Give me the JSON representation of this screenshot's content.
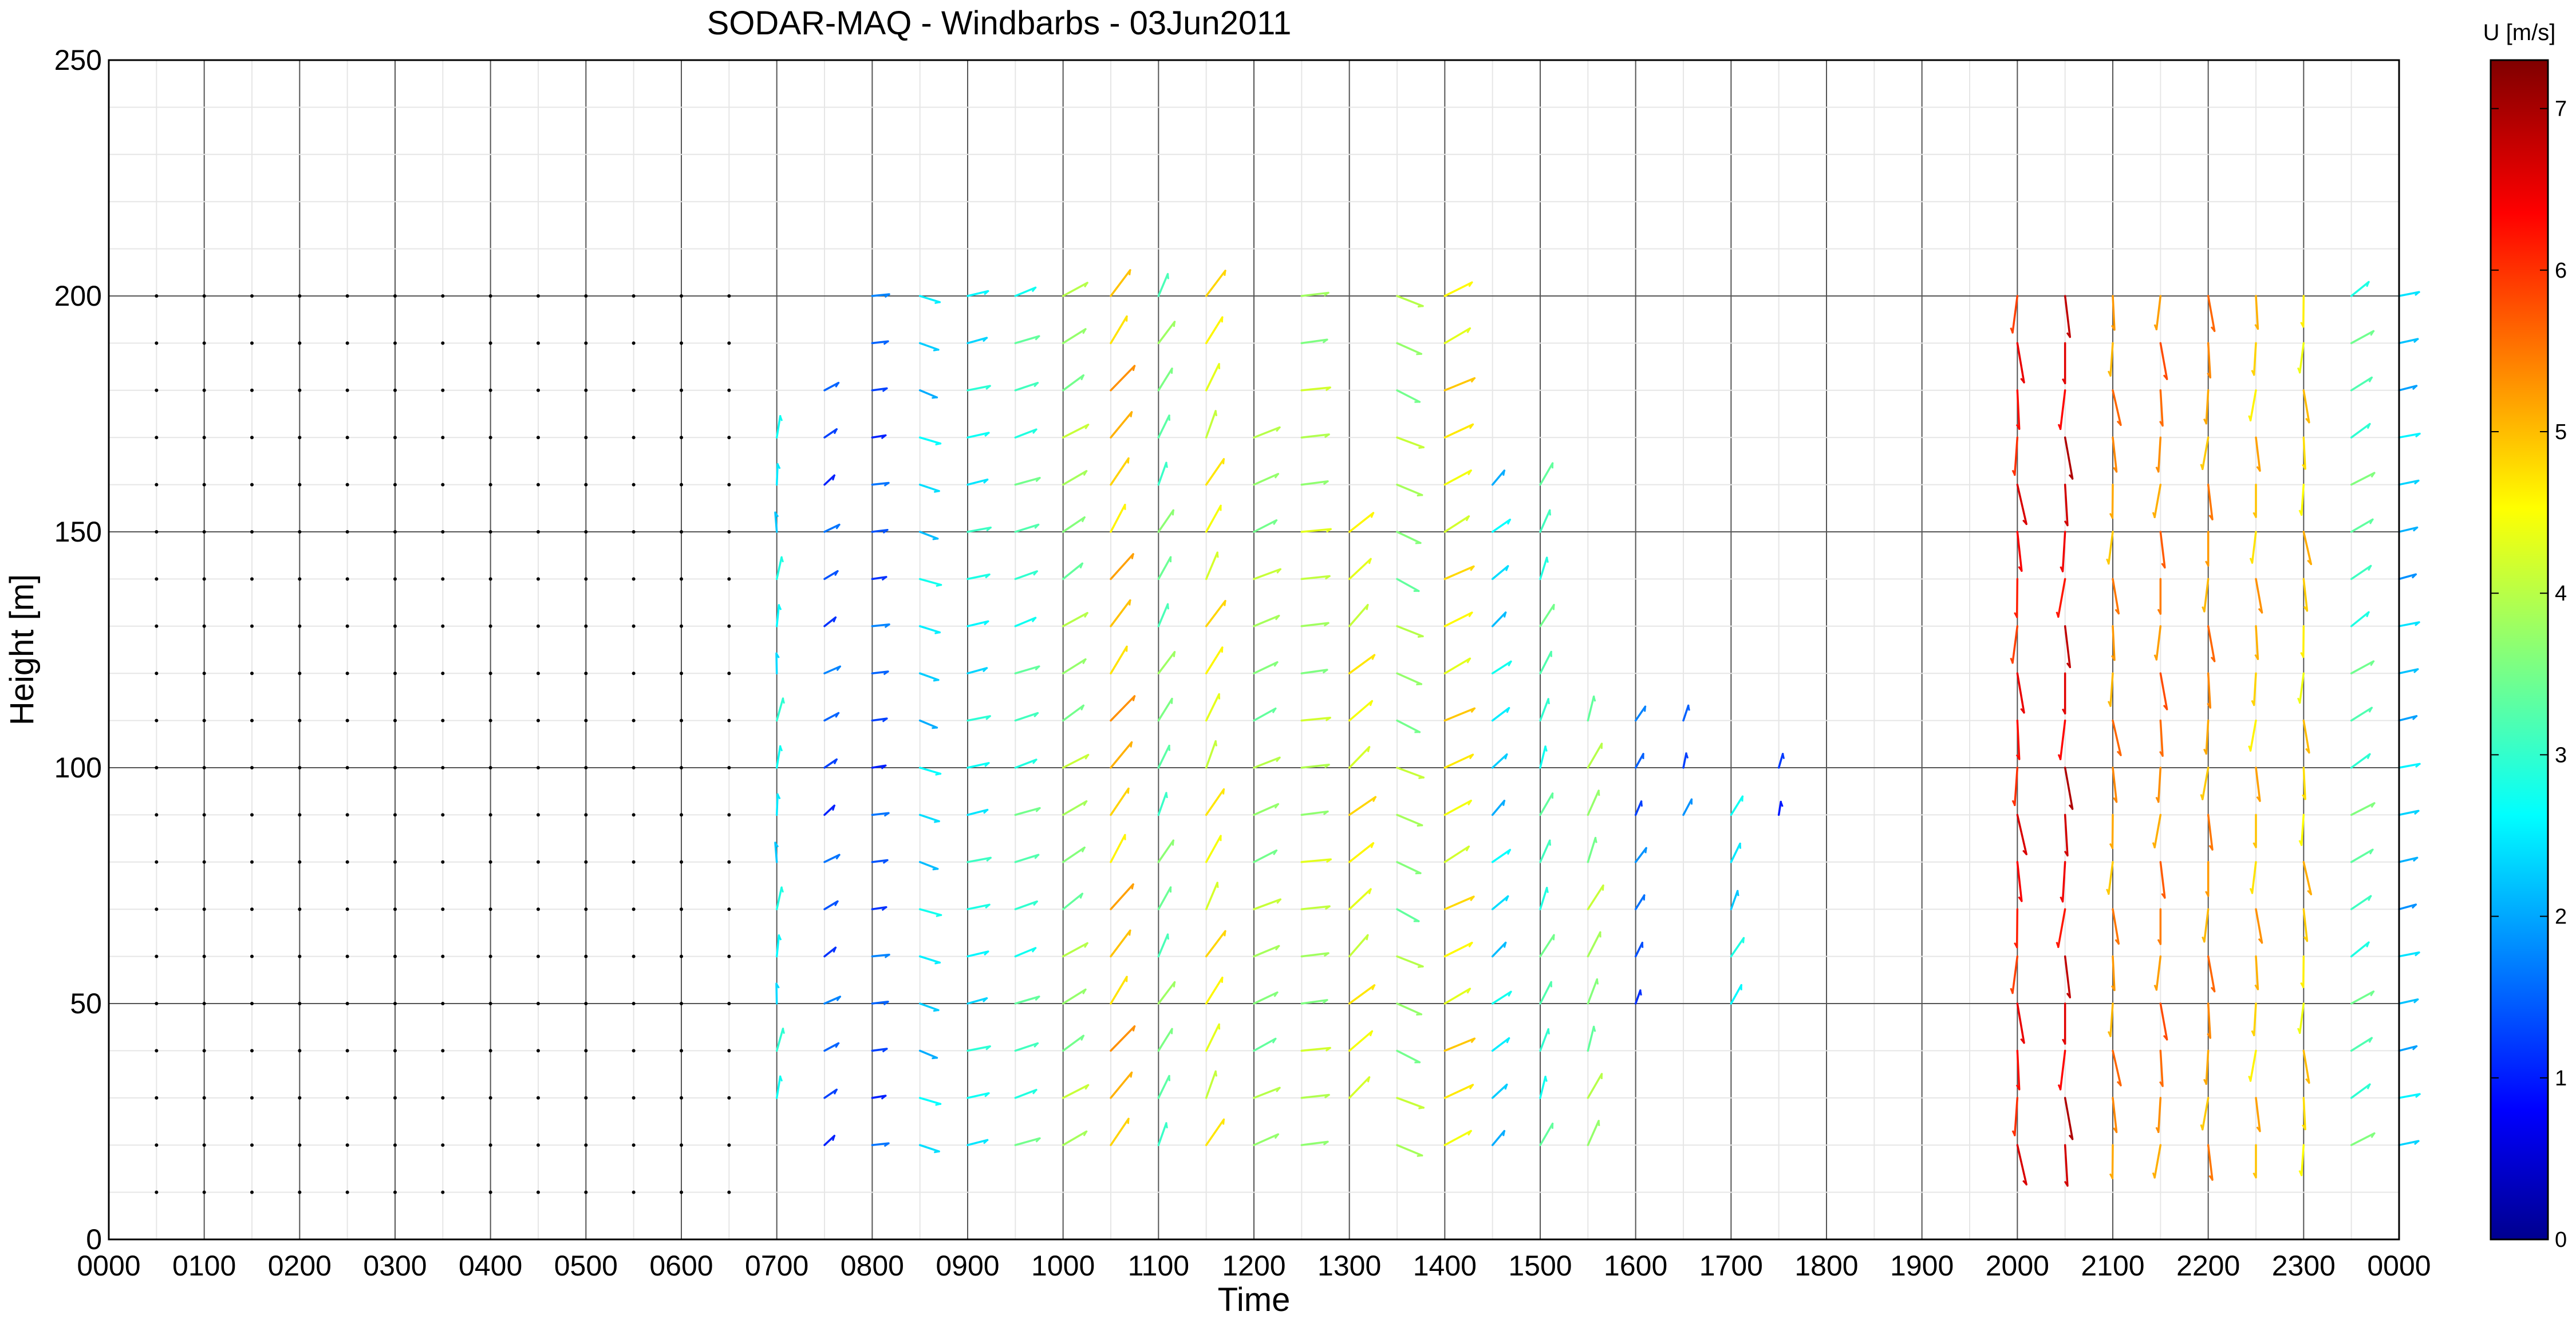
{
  "chart_data": {
    "type": "windbarbs",
    "title": "SODAR-MAQ - Windbarbs - 03Jun2011",
    "xlabel": "Time",
    "ylabel": "Height [m]",
    "xlim": [
      0,
      24
    ],
    "ylim": [
      0,
      250
    ],
    "x_ticks": [
      "0000",
      "0100",
      "0200",
      "0300",
      "0400",
      "0500",
      "0600",
      "0700",
      "0800",
      "0900",
      "1000",
      "1100",
      "1200",
      "1300",
      "1400",
      "1500",
      "1600",
      "1700",
      "1800",
      "1900",
      "2000",
      "2100",
      "2200",
      "2300",
      "0000"
    ],
    "y_ticks": [
      0,
      50,
      100,
      150,
      200,
      250
    ],
    "grid": true,
    "colorbar": {
      "label": "U [m/s]",
      "range": [
        0,
        7.3
      ],
      "ticks": [
        0,
        1,
        2,
        3,
        4,
        5,
        6,
        7
      ],
      "colormap": "jet"
    },
    "heights": [
      10,
      20,
      30,
      40,
      50,
      60,
      70,
      80,
      90,
      100,
      110,
      120,
      130,
      140,
      150,
      160,
      170,
      180,
      190,
      200
    ],
    "vector_columns": [
      {
        "time": "0000",
        "speed": null,
        "dir_x": 0,
        "dir_y": 0
      },
      {
        "time": "0700",
        "bottom": 30,
        "top": 175,
        "speed": 2.7,
        "dir_x": 0.1,
        "dir_y": 1
      },
      {
        "time": "0730",
        "bottom": 20,
        "top": 180,
        "speed": 1.5,
        "dir_x": 0.5,
        "dir_y": 0.3
      },
      {
        "time": "0800",
        "bottom": 20,
        "top": 200,
        "speed": 1.5,
        "dir_x": 0.8,
        "dir_y": 0.1
      },
      {
        "time": "0830",
        "bottom": 20,
        "top": 200,
        "speed": 2.5,
        "dir_x": 0.9,
        "dir_y": -0.3
      },
      {
        "time": "0900",
        "bottom": 20,
        "top": 200,
        "speed": 2.8,
        "dir_x": 0.9,
        "dir_y": 0.2
      },
      {
        "time": "0930",
        "bottom": 20,
        "top": 200,
        "speed": 3.2,
        "dir_x": 0.9,
        "dir_y": 0.3
      },
      {
        "time": "1000",
        "bottom": 20,
        "top": 200,
        "speed": 3.8,
        "dir_x": 0.8,
        "dir_y": 0.5
      },
      {
        "time": "1030",
        "bottom": 20,
        "top": 200,
        "speed": 5.0,
        "dir_x": 0.6,
        "dir_y": 0.8
      },
      {
        "time": "1100",
        "bottom": 20,
        "top": 200,
        "speed": 3.5,
        "dir_x": 0.5,
        "dir_y": 0.9
      },
      {
        "time": "1130",
        "bottom": 20,
        "top": 200,
        "speed": 4.5,
        "dir_x": 0.5,
        "dir_y": 0.9
      },
      {
        "time": "1200",
        "bottom": 20,
        "top": 175,
        "speed": 3.8,
        "dir_x": 0.9,
        "dir_y": 0.4
      },
      {
        "time": "1230",
        "bottom": 20,
        "top": 200,
        "speed": 4.0,
        "dir_x": 0.9,
        "dir_y": 0.1
      },
      {
        "time": "1300",
        "bottom": 30,
        "top": 150,
        "speed": 4.5,
        "dir_x": 0.7,
        "dir_y": 0.6
      },
      {
        "time": "1330",
        "bottom": 20,
        "top": 200,
        "speed": 3.8,
        "dir_x": 0.9,
        "dir_y": -0.4
      },
      {
        "time": "1400",
        "bottom": 20,
        "top": 200,
        "speed": 4.6,
        "dir_x": 0.8,
        "dir_y": 0.4
      },
      {
        "time": "1430",
        "bottom": 20,
        "top": 160,
        "speed": 2.5,
        "dir_x": 0.6,
        "dir_y": 0.5
      },
      {
        "time": "1500",
        "bottom": 20,
        "top": 160,
        "speed": 3.2,
        "dir_x": 0.4,
        "dir_y": 0.9
      },
      {
        "time": "1530",
        "bottom": 20,
        "top": 110,
        "speed": 3.8,
        "dir_x": 0.4,
        "dir_y": 0.9
      },
      {
        "time": "1600",
        "bottom": 50,
        "top": 110,
        "speed": 1.6,
        "dir_x": 0.5,
        "dir_y": 0.9
      },
      {
        "time": "1630",
        "bottom": 90,
        "top": 110,
        "speed": 1.6,
        "dir_x": 0.3,
        "dir_y": 0.9
      },
      {
        "time": "1700",
        "bottom": 50,
        "top": 90,
        "speed": 2.7,
        "dir_x": 0.5,
        "dir_y": 0.9
      },
      {
        "time": "1730",
        "bottom": 90,
        "top": 100,
        "speed": 1.2,
        "dir_x": 0.2,
        "dir_y": 0.9
      },
      {
        "time": "2000",
        "bottom": 20,
        "top": 200,
        "speed": 6.3,
        "dir_x": 0.05,
        "dir_y": -1
      },
      {
        "time": "2030",
        "bottom": 20,
        "top": 200,
        "speed": 6.6,
        "dir_x": 0.0,
        "dir_y": -1
      },
      {
        "time": "2100",
        "bottom": 20,
        "top": 200,
        "speed": 5.3,
        "dir_x": 0.05,
        "dir_y": -1
      },
      {
        "time": "2130",
        "bottom": 20,
        "top": 200,
        "speed": 5.5,
        "dir_x": 0.0,
        "dir_y": -1
      },
      {
        "time": "2200",
        "bottom": 20,
        "top": 200,
        "speed": 5.3,
        "dir_x": 0.0,
        "dir_y": -1
      },
      {
        "time": "2230",
        "bottom": 20,
        "top": 200,
        "speed": 5.0,
        "dir_x": 0.0,
        "dir_y": -1
      },
      {
        "time": "2300",
        "bottom": 20,
        "top": 200,
        "speed": 4.8,
        "dir_x": 0.05,
        "dir_y": -1
      },
      {
        "time": "2330",
        "bottom": 20,
        "top": 200,
        "speed": 3.3,
        "dir_x": 0.8,
        "dir_y": 0.5
      },
      {
        "time": "0000",
        "bottom": 20,
        "top": 200,
        "speed": 2.3,
        "dir_x": 0.9,
        "dir_y": 0.2
      }
    ]
  }
}
